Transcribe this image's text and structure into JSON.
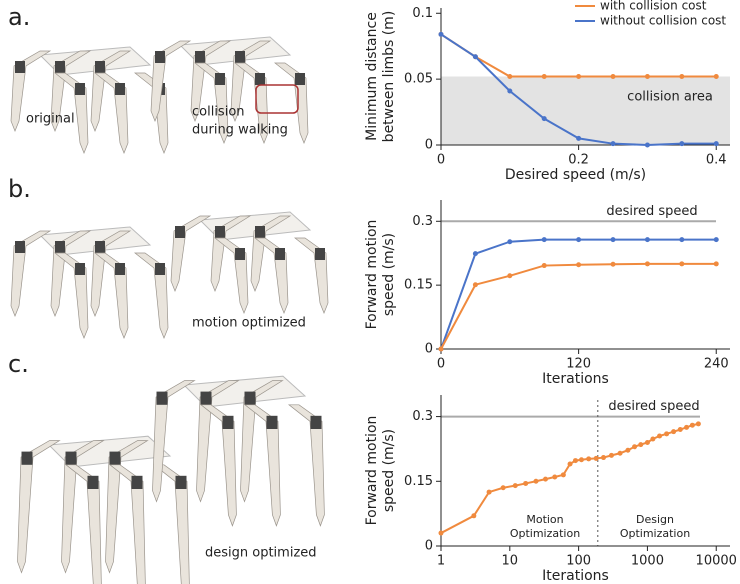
{
  "panels": {
    "labels": [
      "a.",
      "b.",
      "c."
    ],
    "captions": {
      "original": "original",
      "collision": [
        "collision",
        "during walking"
      ],
      "motion": "motion optimized",
      "design": "design optimized"
    }
  },
  "chart_data": [
    {
      "type": "line",
      "ylabel": [
        "Minimum distance",
        "between limbs (m)"
      ],
      "xlabel": "Desired speed (m/s)",
      "x": [
        0,
        0.05,
        0.1,
        0.15,
        0.2,
        0.25,
        0.3,
        0.35,
        0.4
      ],
      "series": [
        {
          "name": "with collision cost",
          "color": "#f08a3e",
          "values": [
            0.084,
            0.067,
            0.052,
            0.052,
            0.052,
            0.052,
            0.052,
            0.052,
            0.052
          ]
        },
        {
          "name": "without collision cost",
          "color": "#4a74c9",
          "values": [
            0.084,
            0.067,
            0.041,
            0.02,
            0.005,
            0.001,
            0,
            0.001,
            0.001
          ]
        }
      ],
      "xlim": [
        0,
        0.42
      ],
      "ylim": [
        0,
        0.104
      ],
      "xticks": [
        0,
        0.2,
        0.4
      ],
      "yticks": [
        0,
        0.05,
        0.1
      ],
      "shaded_region": {
        "ylim": [
          0,
          0.052
        ],
        "label": "collision area",
        "color": "#e3e3e3"
      },
      "legend": "upper right"
    },
    {
      "type": "line",
      "ylabel": [
        "Forward motion",
        "speed (m/s)"
      ],
      "xlabel": "Iterations",
      "x": [
        0,
        30,
        60,
        90,
        120,
        150,
        180,
        210,
        240
      ],
      "series": [
        {
          "color": "#4a74c9",
          "values": [
            0,
            0.224,
            0.252,
            0.257,
            0.257,
            0.257,
            0.257,
            0.257,
            0.257
          ]
        },
        {
          "color": "#f08a3e",
          "values": [
            0,
            0.151,
            0.172,
            0.196,
            0.198,
            0.199,
            0.2,
            0.2,
            0.2
          ]
        }
      ],
      "xlim": [
        0,
        252
      ],
      "ylim": [
        0,
        0.35
      ],
      "xticks": [
        0,
        120,
        240
      ],
      "yticks": [
        0,
        0.15,
        0.3
      ],
      "hline": {
        "value": 0.3,
        "label": "desired speed",
        "color": "#aaaaaa"
      }
    },
    {
      "type": "line",
      "ylabel": [
        "Forward motion",
        "speed (m/s)"
      ],
      "xlabel": "Iterations",
      "xscale": "log",
      "x": [
        1,
        3,
        5,
        8,
        12,
        17,
        24,
        33,
        45,
        60,
        75,
        90,
        110,
        140,
        180,
        230,
        300,
        400,
        520,
        650,
        800,
        1000,
        1200,
        1500,
        1900,
        2400,
        3000,
        3700,
        4500,
        5500
      ],
      "series": [
        {
          "color": "#f08a3e",
          "values": [
            0.03,
            0.07,
            0.125,
            0.135,
            0.14,
            0.145,
            0.15,
            0.155,
            0.16,
            0.165,
            0.19,
            0.198,
            0.2,
            0.202,
            0.203,
            0.205,
            0.21,
            0.215,
            0.222,
            0.23,
            0.235,
            0.24,
            0.248,
            0.255,
            0.26,
            0.265,
            0.27,
            0.275,
            0.28,
            0.283
          ]
        }
      ],
      "xlim": [
        1,
        15849
      ],
      "ylim": [
        0,
        0.35
      ],
      "xticks": [
        1,
        10,
        100,
        1000,
        10000
      ],
      "yticks": [
        0,
        0.15,
        0.3
      ],
      "hline": {
        "value": 0.3,
        "label": "desired speed",
        "color": "#aaaaaa"
      },
      "vline": {
        "value": 190
      },
      "annotations": [
        [
          "Motion",
          "Optimization"
        ],
        [
          "Design",
          "Optimization"
        ]
      ]
    }
  ]
}
